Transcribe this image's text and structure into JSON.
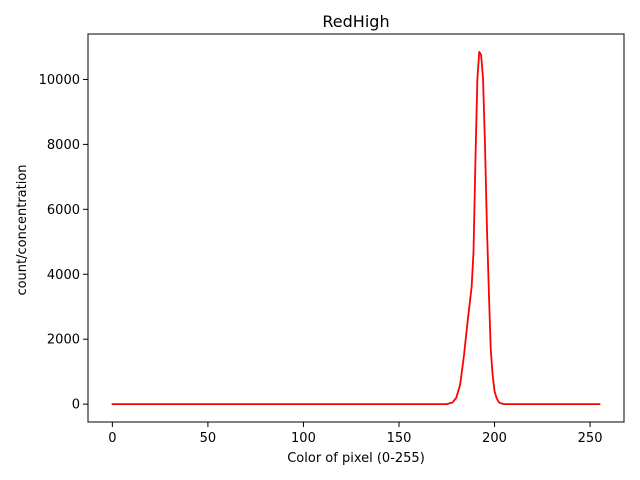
{
  "chart_data": {
    "type": "line",
    "title": "RedHigh",
    "xlabel": "Color of pixel (0-255)",
    "ylabel": "count/concentration",
    "xlim": [
      -12.75,
      267.75
    ],
    "ylim": [
      -550,
      11400
    ],
    "xticks": [
      0,
      50,
      100,
      150,
      200,
      250
    ],
    "yticks": [
      0,
      2000,
      4000,
      6000,
      8000,
      10000
    ],
    "grid": false,
    "series": [
      {
        "color": "#ff0000",
        "x": [
          0,
          50,
          100,
          150,
          175,
          178,
          180,
          182,
          184,
          186,
          188,
          189,
          190,
          191,
          192,
          193,
          194,
          195,
          196,
          197,
          198,
          199,
          200,
          201,
          202,
          203,
          205,
          210,
          230,
          255
        ],
        "y": [
          0,
          0,
          0,
          0,
          0,
          50,
          200,
          600,
          1500,
          2600,
          3600,
          4700,
          7500,
          10000,
          10850,
          10750,
          10000,
          8000,
          5500,
          3500,
          1700,
          900,
          400,
          200,
          80,
          30,
          0,
          0,
          0,
          0
        ]
      }
    ]
  }
}
